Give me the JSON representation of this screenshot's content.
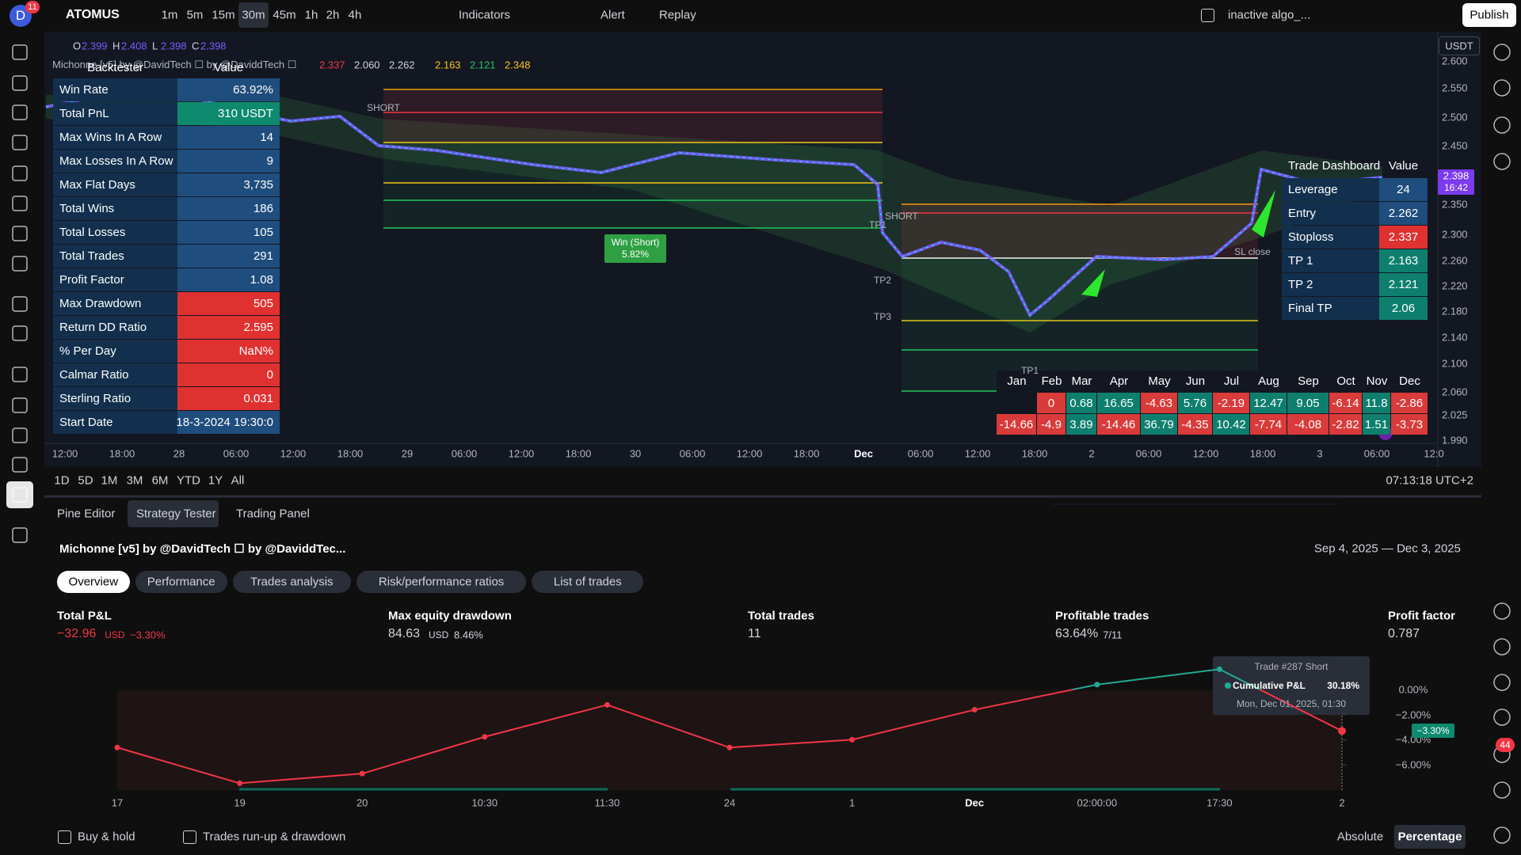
{
  "toolbar": {
    "avatar": "D",
    "badge": "11",
    "symbol": "ATOMUS",
    "intervals": [
      "1m",
      "5m",
      "15m",
      "30m",
      "45m",
      "1h",
      "2h",
      "4h"
    ],
    "active_interval": "30m",
    "indicators": "Indicators",
    "alert": "Alert",
    "replay": "Replay",
    "algo": "inactive algo_...",
    "publish": "Publish"
  },
  "legend": {
    "ohlc": [
      {
        "label": "O",
        "value": "2.399"
      },
      {
        "label": "H",
        "value": "2.408"
      },
      {
        "label": "L",
        "value": "2.398"
      },
      {
        "label": "C",
        "value": "2.398"
      }
    ],
    "indicator": "Michonne [v5] by @DavidTech ☐ by @DaviddTech ☐",
    "values": [
      {
        "value": "2.337",
        "color": "#f23645"
      },
      {
        "value": "2.060",
        "color": "#d1d4dc"
      },
      {
        "value": "2.262",
        "color": "#d1d4dc"
      },
      {
        "value": "2.163",
        "color": "#f5c518"
      },
      {
        "value": "2.121",
        "color": "#22c55e"
      },
      {
        "value": "2.348",
        "color": "#f5c518"
      }
    ]
  },
  "backtester": {
    "header": [
      "Backtester",
      "Value"
    ],
    "rows": [
      {
        "label": "Win Rate",
        "value": "63.92%",
        "color": "#1f4d7d"
      },
      {
        "label": "Total PnL",
        "value": "310 USDT",
        "color": "#0e8a6e"
      },
      {
        "label": "Max Wins In A Row",
        "value": "14",
        "color": "#1f4d7d"
      },
      {
        "label": "Max Losses In A Row",
        "value": "9",
        "color": "#1f4d7d"
      },
      {
        "label": "Max Flat Days",
        "value": "3,735",
        "color": "#1f4d7d"
      },
      {
        "label": "Total Wins",
        "value": "186",
        "color": "#1f4d7d"
      },
      {
        "label": "Total Losses",
        "value": "105",
        "color": "#1f4d7d"
      },
      {
        "label": "Total Trades",
        "value": "291",
        "color": "#1f4d7d"
      },
      {
        "label": "Profit Factor",
        "value": "1.08",
        "color": "#1f4d7d"
      },
      {
        "label": "Max Drawdown",
        "value": "505",
        "color": "#e03131"
      },
      {
        "label": "Return DD Ratio",
        "value": "2.595",
        "color": "#e03131"
      },
      {
        "label": "% Per Day",
        "value": "NaN%",
        "color": "#e03131"
      },
      {
        "label": "Calmar Ratio",
        "value": "0",
        "color": "#e03131"
      },
      {
        "label": "Sterling Ratio",
        "value": "0.031",
        "color": "#e03131"
      },
      {
        "label": "Start Date",
        "value": "18-3-2024 19:30:0",
        "color": "#1f4d7d"
      }
    ]
  },
  "dashboard": {
    "header": [
      "Trade Dashboard",
      "Value"
    ],
    "rows": [
      {
        "label": "Leverage",
        "value": "24",
        "color": "#1f4d7d"
      },
      {
        "label": "Entry",
        "value": "2.262",
        "color": "#1f4d7d"
      },
      {
        "label": "Stoploss",
        "value": "2.337",
        "color": "#e03131"
      },
      {
        "label": "TP 1",
        "value": "2.163",
        "color": "#0e7f6e"
      },
      {
        "label": "TP 2",
        "value": "2.121",
        "color": "#0e7f6e"
      },
      {
        "label": "Final TP",
        "value": "2.06",
        "color": "#0e7f6e"
      }
    ]
  },
  "monthly": {
    "months": [
      "Jan",
      "Feb",
      "Mar",
      "Apr",
      "May",
      "Jun",
      "Jul",
      "Aug",
      "Sep",
      "Oct",
      "Nov",
      "Dec"
    ],
    "rows": [
      [
        null,
        0,
        0.68,
        16.65,
        -4.63,
        5.76,
        -2.19,
        12.47,
        9.05,
        -6.14,
        11.8,
        -2.86
      ],
      [
        -14.66,
        -4.9,
        3.89,
        -14.46,
        36.79,
        -4.35,
        10.42,
        -7.74,
        -4.08,
        -2.82,
        1.51,
        -3.73
      ]
    ]
  },
  "price_axis": {
    "currency": "USDT",
    "labels": [
      "2.600",
      "2.550",
      "2.500",
      "2.450",
      "2.350",
      "2.300",
      "2.260",
      "2.220",
      "2.180",
      "2.140",
      "2.100",
      "2.060",
      "2.025",
      "1.990"
    ],
    "current": "2.398",
    "current_time": "16:42"
  },
  "time_axis": {
    "labels": [
      "12:00",
      "18:00",
      "28",
      "06:00",
      "12:00",
      "18:00",
      "29",
      "06:00",
      "12:00",
      "18:00",
      "30",
      "06:00",
      "12:00",
      "18:00",
      "Dec",
      "06:00",
      "12:00",
      "18:00",
      "2",
      "06:00",
      "12:00",
      "18:00",
      "3",
      "06:00",
      "12:0"
    ]
  },
  "annotations": {
    "short_1": "SHORT",
    "short_2": "SHORT",
    "tp1_a": "TP1",
    "tp2": "TP2",
    "tp3": "TP3",
    "tp1_b": "TP1",
    "win_title": "Win (Short)",
    "win_pct": "5.82%",
    "sl_close": "SL close"
  },
  "range_bar": {
    "ranges": [
      "1D",
      "5D",
      "1M",
      "3M",
      "6M",
      "YTD",
      "1Y",
      "All"
    ],
    "clock": "07:13:18 UTC+2"
  },
  "panel": {
    "tabs": [
      "Pine Editor",
      "Strategy Tester",
      "Trading Panel"
    ],
    "active_tab": "Strategy Tester"
  },
  "strategy": {
    "title": "Michonne [v5] by @DavidTech ☐ by @DaviddTec...",
    "date_range": "Sep 4, 2025 — Dec 3, 2025",
    "subtabs": [
      "Overview",
      "Performance",
      "Trades analysis",
      "Risk/performance ratios",
      "List of trades"
    ],
    "active_subtab": "Overview"
  },
  "metrics": [
    {
      "label": "Total P&L",
      "value": "−32.96",
      "unit": "USD",
      "extra": "−3.30%",
      "color": "#f23645"
    },
    {
      "label": "Max equity drawdown",
      "value": "84.63",
      "unit": "USD",
      "extra": "8.46%",
      "color": "#d1d4dc"
    },
    {
      "label": "Total trades",
      "value": "11",
      "color": "#d1d4dc"
    },
    {
      "label": "Profitable trades",
      "value": "63.64%",
      "extra": "7/11",
      "color": "#d1d4dc"
    },
    {
      "label": "Profit factor",
      "value": "0.787",
      "color": "#d1d4dc"
    }
  ],
  "equity": {
    "ylim": [
      -8,
      2
    ],
    "yticks": [
      {
        "value": 0,
        "label": "0.00%"
      },
      {
        "value": -2,
        "label": "−2.00%"
      },
      {
        "value": -4,
        "label": "−4.00%"
      },
      {
        "value": -6,
        "label": "−6.00%"
      }
    ],
    "values": [
      -4.62,
      -7.46,
      -6.69,
      -3.77,
      -1.23,
      -4.62,
      -4.0,
      -1.62,
      0.38,
      1.6,
      -3.3
    ],
    "x_labels": [
      "17",
      "19",
      "20",
      "10:30",
      "11:30",
      "24",
      "1",
      "Dec",
      "02:00:00",
      "17:30",
      "2"
    ],
    "last_label": "−3.30%",
    "tooltip": {
      "title": "Trade #287 Short",
      "series": "Cumulative P&L",
      "value": "30.18%",
      "date": "Mon, Dec 01, 2025, 01:30"
    }
  },
  "footer": {
    "buy_hold": "Buy & hold",
    "runup": "Trades run-up & drawdown",
    "absolute": "Absolute",
    "percentage": "Percentage"
  },
  "notifications": "44"
}
